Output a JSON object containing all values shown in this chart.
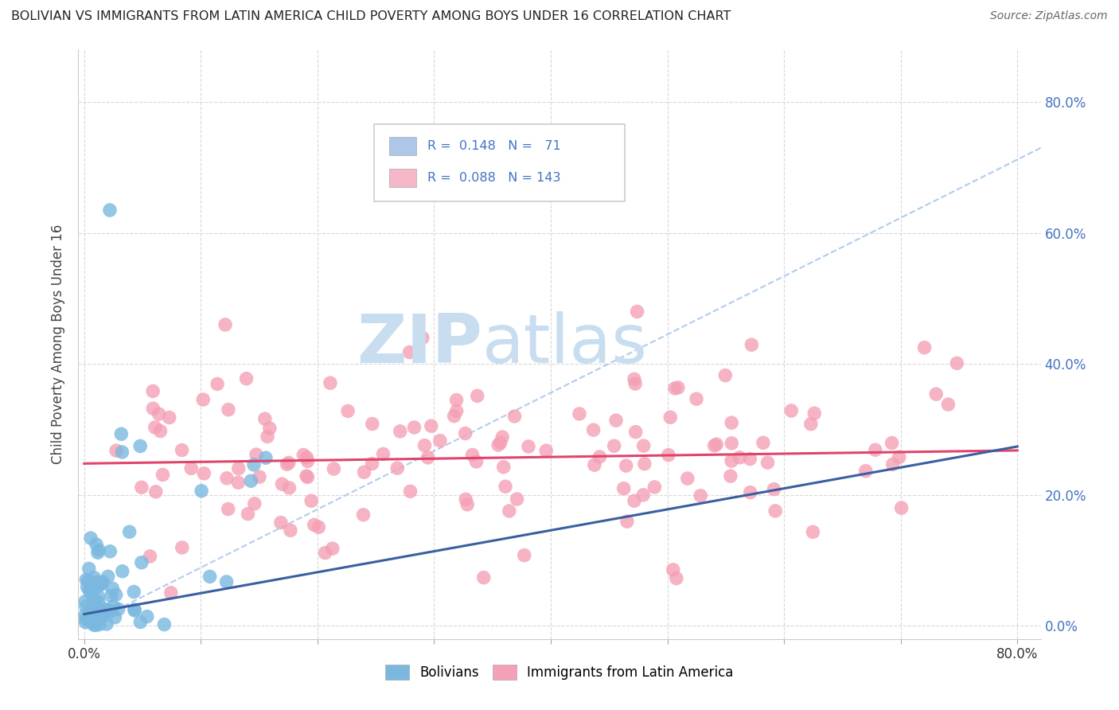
{
  "title": "BOLIVIAN VS IMMIGRANTS FROM LATIN AMERICA CHILD POVERTY AMONG BOYS UNDER 16 CORRELATION CHART",
  "source": "Source: ZipAtlas.com",
  "ylabel": "Child Poverty Among Boys Under 16",
  "ytick_values": [
    0,
    0.2,
    0.4,
    0.6,
    0.8
  ],
  "xtick_values": [
    0,
    0.1,
    0.2,
    0.3,
    0.4,
    0.5,
    0.6,
    0.7,
    0.8
  ],
  "xlim": [
    -0.005,
    0.82
  ],
  "ylim": [
    -0.02,
    0.88
  ],
  "legend_bottom": [
    "Bolivians",
    "Immigrants from Latin America"
  ],
  "bolivians_color": "#7ab8e0",
  "immigrants_color": "#f4a0b5",
  "trend_bolivians_color": "#3a5fa0",
  "trend_immigrants_color": "#e0446a",
  "trend_dashed_color": "#aac8e8",
  "watermark_zip": "ZIP",
  "watermark_atlas": "atlas",
  "watermark_color": "#c8ddf0",
  "background_color": "#ffffff",
  "grid_color": "#d8d8d8",
  "R_bolivians": 0.148,
  "N_bolivians": 71,
  "R_immigrants": 0.088,
  "N_immigrants": 143,
  "legend_box_color": "#aec6e8",
  "legend_box_color2": "#f4b8c8",
  "legend_text_color": "#4472c4"
}
